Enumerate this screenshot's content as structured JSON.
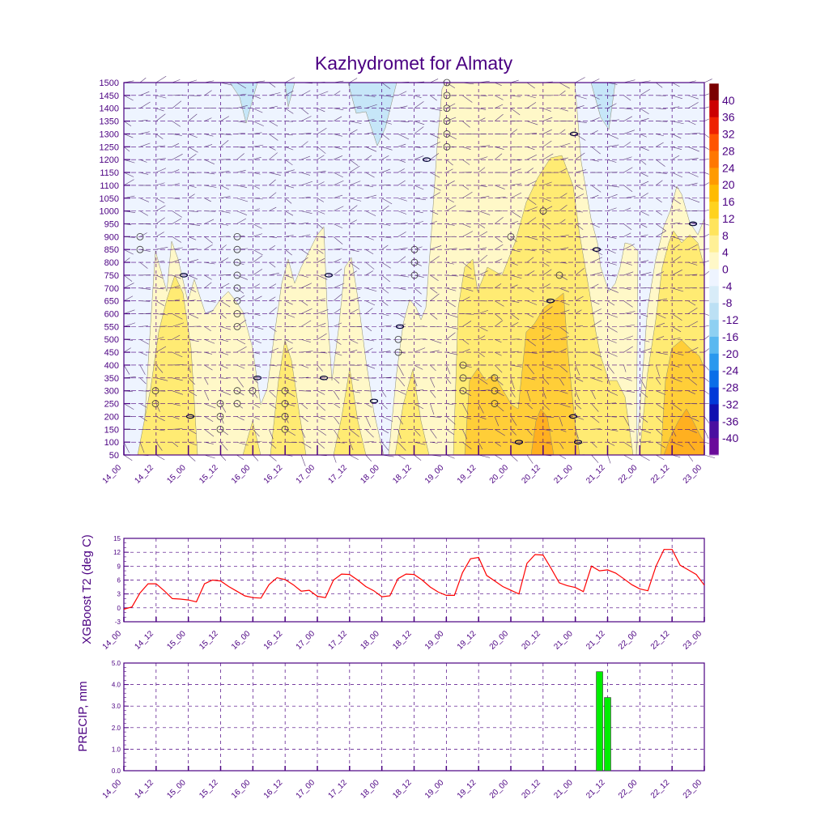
{
  "title": "Kazhydromet for Almaty",
  "colors": {
    "axis": "#4b0082",
    "t2_line": "#ff0000",
    "precip_bar": "#00ee00"
  },
  "time_ticks": [
    "14_00",
    "14_12",
    "15_00",
    "15_12",
    "16_00",
    "16_12",
    "17_00",
    "17_12",
    "18_00",
    "18_12",
    "19_00",
    "19_12",
    "20_00",
    "20_12",
    "21_00",
    "21_12",
    "22_00",
    "22_12",
    "23_00"
  ],
  "chart_data": [
    {
      "type": "heatmap",
      "name": "cross-section",
      "title": "Kazhydromet for Almaty",
      "x_ticks": [
        "14_00",
        "14_12",
        "15_00",
        "15_12",
        "16_00",
        "16_12",
        "17_00",
        "17_12",
        "18_00",
        "18_12",
        "19_00",
        "19_12",
        "20_00",
        "20_12",
        "21_00",
        "21_12",
        "22_00",
        "22_12",
        "23_00"
      ],
      "y_ticks": [
        50,
        100,
        150,
        200,
        250,
        300,
        350,
        400,
        450,
        500,
        550,
        600,
        650,
        700,
        750,
        800,
        850,
        900,
        950,
        1000,
        1050,
        1100,
        1150,
        1200,
        1250,
        1300,
        1350,
        1400,
        1450,
        1500
      ],
      "ylim": [
        50,
        1500
      ],
      "colorbar_labels": [
        "40",
        "36",
        "32",
        "28",
        "24",
        "20",
        "16",
        "12",
        "8",
        "4",
        "0",
        "-4",
        "-8",
        "-12",
        "-16",
        "-20",
        "-24",
        "-28",
        "-32",
        "-36",
        "-40"
      ],
      "colorbar_colors": [
        "#7a0000",
        "#cc0000",
        "#ee2200",
        "#ff5500",
        "#ff7700",
        "#ff9a00",
        "#ffbb00",
        "#ffd21f",
        "#ffe45c",
        "#fff096",
        "#fff8c8",
        "#eef4ff",
        "#d8ecf8",
        "#bce0f4",
        "#8ed0f2",
        "#5ab8f0",
        "#2a98ee",
        "#0a6ee8",
        "#0038d8",
        "#1010b0",
        "#4a10a0",
        "#6a0a9a"
      ],
      "grid": true
    },
    {
      "type": "line",
      "name": "t2",
      "ylabel": "XGBoost T2 (deg C)",
      "x_ticks": [
        "14_00",
        "14_12",
        "15_00",
        "15_12",
        "16_00",
        "16_12",
        "17_00",
        "17_12",
        "18_00",
        "18_12",
        "19_00",
        "19_12",
        "20_00",
        "20_12",
        "21_00",
        "21_12",
        "22_00",
        "22_12",
        "23_00"
      ],
      "ylim": [
        -3,
        15
      ],
      "y_ticks": [
        "-3",
        "0",
        "3",
        "6",
        "9",
        "12",
        "15"
      ],
      "x": [
        0,
        3,
        6,
        9,
        12,
        15,
        18,
        21,
        24,
        27,
        30,
        33,
        36,
        39,
        42,
        45,
        48,
        51,
        54,
        57,
        60,
        63,
        66,
        69,
        72,
        75,
        78,
        81,
        84,
        87,
        90,
        93,
        96,
        99,
        102,
        105,
        108,
        111,
        114,
        117,
        120,
        123,
        126,
        129,
        132,
        135,
        138,
        141,
        144,
        147,
        150,
        153,
        156,
        159,
        162,
        165,
        168,
        171,
        174,
        177,
        180,
        183,
        186,
        189,
        192,
        195,
        198,
        201,
        204,
        207,
        210,
        213,
        216
      ],
      "y": [
        -0.3,
        0.2,
        3.2,
        5.2,
        5.2,
        3.7,
        2.0,
        1.9,
        1.7,
        1.3,
        5.2,
        6.0,
        5.8,
        4.6,
        3.6,
        2.6,
        2.2,
        2.1,
        5.0,
        6.5,
        6.1,
        5.0,
        3.6,
        3.8,
        2.5,
        2.2,
        6.0,
        7.3,
        7.2,
        6.0,
        4.6,
        3.7,
        2.4,
        2.6,
        6.3,
        7.3,
        7.2,
        6.0,
        4.5,
        3.4,
        2.7,
        2.7,
        7.6,
        10.6,
        10.9,
        7.0,
        5.8,
        4.6,
        3.8,
        3.0,
        9.6,
        11.5,
        11.4,
        8.5,
        5.4,
        4.8,
        4.4,
        3.5,
        9.0,
        8.0,
        8.2,
        7.5,
        6.3,
        5.0,
        4.1,
        3.7,
        9.0,
        12.6,
        12.6,
        9.2,
        8.2,
        7.2,
        4.9
      ],
      "grid": true
    },
    {
      "type": "bar",
      "name": "precip",
      "ylabel": "PRECIP, mm",
      "x_ticks": [
        "14_00",
        "14_12",
        "15_00",
        "15_12",
        "16_00",
        "16_12",
        "17_00",
        "17_12",
        "18_00",
        "18_12",
        "19_00",
        "19_12",
        "20_00",
        "20_12",
        "21_00",
        "21_12",
        "22_00",
        "22_12",
        "23_00"
      ],
      "ylim": [
        0,
        5
      ],
      "y_ticks": [
        "0.0",
        "1.0",
        "2.0",
        "3.0",
        "4.0",
        "5.0"
      ],
      "bars": [
        {
          "x": 177,
          "value": 4.6
        },
        {
          "x": 180,
          "value": 3.4
        }
      ],
      "grid": true
    }
  ]
}
